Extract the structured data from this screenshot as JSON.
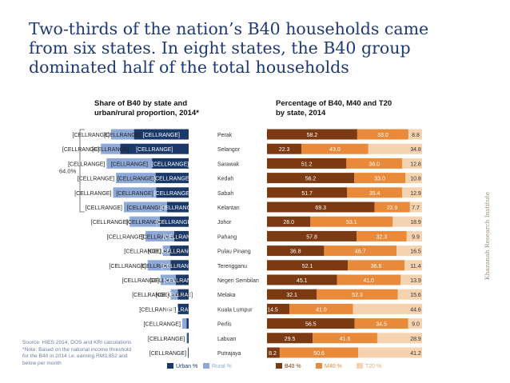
{
  "title_lines": [
    "Two-thirds of the nation’s B40 households came",
    "from six states. In eight states, the B40 group",
    "dominated half of the total households"
  ],
  "source_lines": [
    "Source: HIES 2014, DOS and KRI calculations",
    "*Note: Based on the national income threshold",
    "for the B40 in 2014 i.e. earning RM3,852 and",
    "below per month"
  ],
  "side_label": "Khazanah Research Institute",
  "colors": {
    "title": "#1f3a72",
    "urban": "#1a3868",
    "rural": "#8ea9d8",
    "b40": "#7b3a12",
    "m40": "#e88a3a",
    "t20": "#f5d2b0"
  },
  "chart_data": [
    {
      "type": "bar",
      "orientation": "horizontal",
      "stacked": true,
      "title": "Share of B40 by state and urban/rural proportion, 2014*",
      "title_lines": [
        "Share of B40 by state and",
        "urban/rural proportion, 2014*"
      ],
      "categories": [
        "Perak",
        "Selangor",
        "Sarawak",
        "Kedah",
        "Sabah",
        "Kelantan",
        "Johor",
        "Pahang",
        "Pulau Pinang",
        "Terengganu",
        "Negeri Sembilan",
        "Melaka",
        "Kuala Lumpur",
        "Perlis",
        "Labuan",
        "Putrajaya"
      ],
      "data_label_text": "[CELLRANGE]",
      "bracket_label": "64.0%",
      "series": [
        {
          "name": "Urban %",
          "values": [
            7.6,
            9.5,
            5.1,
            4.6,
            4.5,
            3.0,
            4.0,
            2.0,
            2.6,
            2.5,
            1.8,
            1.5,
            1.5,
            0.3,
            0.2,
            0.1
          ]
        },
        {
          "name": "Rural %",
          "values": [
            3.2,
            2.7,
            6.3,
            5.5,
            6.0,
            6.0,
            4.2,
            4.0,
            1.0,
            3.2,
            2.1,
            1.0,
            0.0,
            0.6,
            0.1,
            0.0
          ]
        }
      ],
      "legend": "bottom"
    },
    {
      "type": "bar",
      "orientation": "horizontal",
      "stacked": true,
      "title": "Percentage of B40, M40 and T20 by state, 2014",
      "title_lines": [
        "Percentage of B40, M40 and T20",
        "by state, 2014"
      ],
      "categories": [
        "Perak",
        "Selangor",
        "Sarawak",
        "Kedah",
        "Sabah",
        "Kelantan",
        "Johor",
        "Pahang",
        "Pulau Pinang",
        "Terengganu",
        "Negeri Sembilan",
        "Melaka",
        "Kuala Lumpur",
        "Perlis",
        "Labuan",
        "Putrajaya"
      ],
      "series": [
        {
          "name": "B40 %",
          "values": [
            58.2,
            22.3,
            51.2,
            56.2,
            51.7,
            69.3,
            28.0,
            57.8,
            36.8,
            52.1,
            45.1,
            32.1,
            14.5,
            56.5,
            29.5,
            8.2
          ]
        },
        {
          "name": "M40 %",
          "values": [
            33.0,
            43.0,
            36.0,
            33.0,
            35.4,
            22.9,
            53.1,
            32.3,
            46.7,
            36.6,
            41.0,
            52.3,
            41.0,
            34.5,
            41.6,
            50.6
          ]
        },
        {
          "name": "T20 %",
          "values": [
            8.8,
            34.8,
            12.8,
            10.8,
            12.9,
            7.7,
            18.9,
            9.9,
            16.5,
            11.4,
            13.9,
            15.6,
            44.6,
            9.0,
            28.9,
            41.2
          ]
        }
      ],
      "xlim": [
        0,
        100
      ],
      "legend": "bottom"
    }
  ]
}
